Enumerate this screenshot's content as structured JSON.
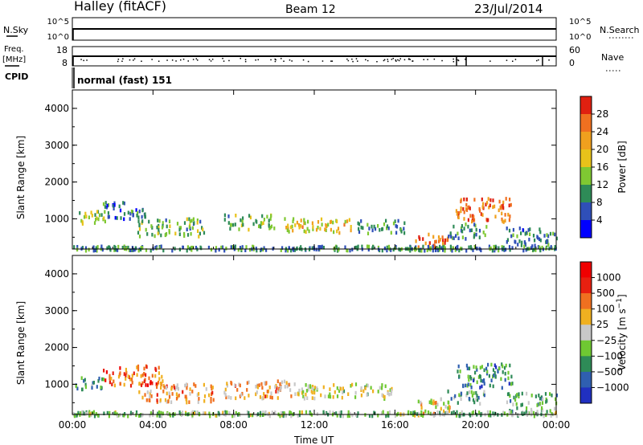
{
  "header": {
    "station": "Halley (fitACF)",
    "beam": "Beam 12",
    "date": "23/Jul/2014"
  },
  "panels": {
    "nsky": {
      "left_label": "N.Sky",
      "right_label": "N.Search",
      "left_ticks": [
        "10^5",
        "10^0"
      ],
      "right_ticks": [
        "10^5",
        "10^0"
      ]
    },
    "freq": {
      "left_label_1": "Freq.",
      "left_label_2": "[MHz]",
      "right_label": "Nave",
      "left_ticks": [
        "18",
        "8"
      ],
      "right_ticks": [
        "60",
        "0"
      ]
    },
    "cpid": {
      "label": "CPID",
      "text": "normal (fast) 151"
    }
  },
  "chart_data": [
    {
      "type": "heatmap",
      "name": "power",
      "ylabel": "Slant Range [km]",
      "yticks": [
        "1000",
        "2000",
        "3000",
        "4000"
      ],
      "ylim": [
        180,
        4500
      ],
      "xlim": [
        0,
        24
      ],
      "xticks": [
        "00:00",
        "04:00",
        "08:00",
        "12:00",
        "16:00",
        "20:00",
        "00:00"
      ],
      "colorbar": {
        "label": "Power [dB]",
        "ticks": [
          "4",
          "8",
          "12",
          "16",
          "20",
          "24",
          "28"
        ],
        "colors": [
          "#0000ff",
          "#2f4fb8",
          "#2e8b57",
          "#7fc832",
          "#e8c21a",
          "#f0a01e",
          "#f07020",
          "#e02010"
        ]
      },
      "blobs": [
        {
          "t0": 0.0,
          "t1": 1.6,
          "r0": 900,
          "r1": 1250,
          "level": 0.45
        },
        {
          "t0": 1.5,
          "t1": 3.6,
          "r0": 1000,
          "r1": 1500,
          "level": 0.25
        },
        {
          "t0": 3.2,
          "t1": 6.5,
          "r0": 550,
          "r1": 1050,
          "level": 0.4
        },
        {
          "t0": 7.5,
          "t1": 10.0,
          "r0": 750,
          "r1": 1150,
          "level": 0.35
        },
        {
          "t0": 10.5,
          "t1": 14.0,
          "r0": 650,
          "r1": 1050,
          "level": 0.6
        },
        {
          "t0": 14.0,
          "t1": 16.5,
          "r0": 650,
          "r1": 1000,
          "level": 0.3
        },
        {
          "t0": 17.0,
          "t1": 18.7,
          "r0": 250,
          "r1": 650,
          "level": 0.85
        },
        {
          "t0": 19.0,
          "t1": 21.8,
          "r0": 950,
          "r1": 1600,
          "level": 0.8
        },
        {
          "t0": 18.5,
          "t1": 20.5,
          "r0": 500,
          "r1": 900,
          "level": 0.3
        },
        {
          "t0": 21.5,
          "t1": 24.0,
          "r0": 300,
          "r1": 800,
          "level": 0.25
        },
        {
          "t0": 0.0,
          "t1": 24.0,
          "r0": 180,
          "r1": 300,
          "level": 0.3
        }
      ]
    },
    {
      "type": "heatmap",
      "name": "velocity",
      "ylabel": "Slant Range [km]",
      "yticks": [
        "1000",
        "2000",
        "3000",
        "4000"
      ],
      "ylim": [
        180,
        4500
      ],
      "xlim": [
        0,
        24
      ],
      "xticks": [
        "00:00",
        "04:00",
        "08:00",
        "12:00",
        "16:00",
        "20:00",
        "00:00"
      ],
      "xlabel": "Time UT",
      "colorbar": {
        "label": "Velocity [m s^-1]",
        "ticks": [
          "1000",
          "500",
          "100",
          "25",
          "-25",
          "-100",
          "-500",
          "-1000"
        ],
        "colors": [
          "#2030c0",
          "#2f5fb0",
          "#2e8b57",
          "#6fc832",
          "#c8c8c8",
          "#f0b020",
          "#f07020",
          "#e82010",
          "#f00000"
        ]
      },
      "blobs": [
        {
          "t0": 0.0,
          "t1": 1.6,
          "r0": 900,
          "r1": 1250,
          "level": 0.3
        },
        {
          "t0": 1.5,
          "t1": 4.5,
          "r0": 1000,
          "r1": 1550,
          "level": 0.75
        },
        {
          "t0": 3.2,
          "t1": 7.0,
          "r0": 550,
          "r1": 1050,
          "level": 0.65
        },
        {
          "t0": 7.5,
          "t1": 11.0,
          "r0": 650,
          "r1": 1150,
          "level": 0.62
        },
        {
          "t0": 11.0,
          "t1": 16.0,
          "r0": 650,
          "r1": 1050,
          "level": 0.48
        },
        {
          "t0": 17.0,
          "t1": 18.7,
          "r0": 250,
          "r1": 650,
          "level": 0.55
        },
        {
          "t0": 19.0,
          "t1": 21.8,
          "r0": 950,
          "r1": 1600,
          "level": 0.25
        },
        {
          "t0": 18.5,
          "t1": 20.5,
          "r0": 500,
          "r1": 900,
          "level": 0.35
        },
        {
          "t0": 21.5,
          "t1": 24.0,
          "r0": 300,
          "r1": 800,
          "level": 0.35
        },
        {
          "t0": 0.0,
          "t1": 24.0,
          "r0": 180,
          "r1": 300,
          "level": 0.4
        }
      ]
    }
  ]
}
